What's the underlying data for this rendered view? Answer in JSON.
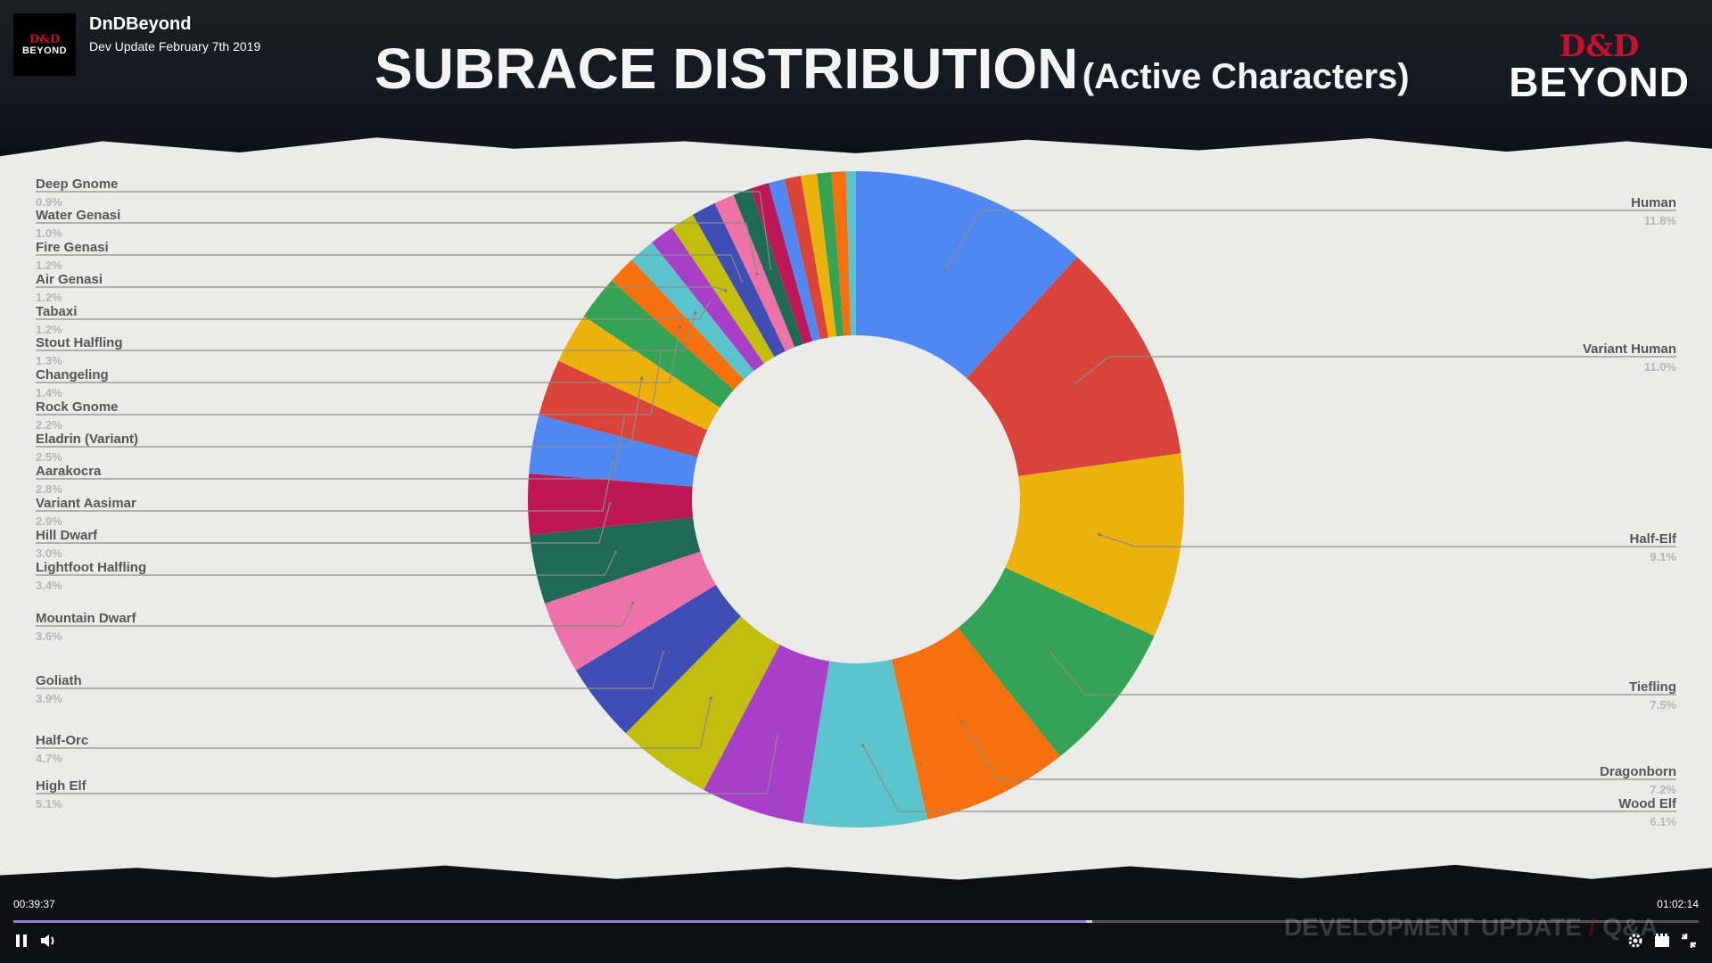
{
  "channel": {
    "logo_text_top": "D&D",
    "logo_text_bottom": "BEYOND",
    "name": "DnDBeyond",
    "video_title": "Dev Update February 7th 2019"
  },
  "slide": {
    "title": "SUBRACE DISTRIBUTION",
    "subtitle": "(Active Characters)",
    "brand_top": "D&D",
    "brand_bottom": "BEYOND"
  },
  "player": {
    "current_time": "00:39:37",
    "total_time": "01:02:14",
    "progress_fraction": 0.6365,
    "buffered_fraction": 0.64,
    "watermark_main": "DEVELOPMENT UPDATE",
    "watermark_slash": "/",
    "watermark_tail": "Q&A"
  },
  "icons": [
    "pause-icon",
    "volume-icon",
    "settings-icon",
    "theater-mode-icon",
    "exit-fullscreen-icon"
  ],
  "chart_data": {
    "type": "pie",
    "style": "donut",
    "title": "SUBRACE DISTRIBUTION (Active Characters)",
    "slices": [
      {
        "label": "Human",
        "value": 11.8,
        "pct": "11.8%",
        "color": "#4f87f3",
        "side": "right"
      },
      {
        "label": "Variant Human",
        "value": 11.0,
        "pct": "11.0%",
        "color": "#d9433a",
        "side": "right"
      },
      {
        "label": "Half-Elf",
        "value": 9.1,
        "pct": "9.1%",
        "color": "#edb10c",
        "side": "right"
      },
      {
        "label": "Tiefling",
        "value": 7.5,
        "pct": "7.5%",
        "color": "#34a355",
        "side": "right"
      },
      {
        "label": "Dragonborn",
        "value": 7.2,
        "pct": "7.2%",
        "color": "#f6700d",
        "side": "right"
      },
      {
        "label": "Wood Elf",
        "value": 6.1,
        "pct": "6.1%",
        "color": "#5bc3cc",
        "side": "right"
      },
      {
        "label": "High Elf",
        "value": 5.1,
        "pct": "5.1%",
        "color": "#a83fc9",
        "side": "left"
      },
      {
        "label": "Half-Orc",
        "value": 4.7,
        "pct": "4.7%",
        "color": "#c3bd0d",
        "side": "left"
      },
      {
        "label": "Goliath",
        "value": 3.9,
        "pct": "3.9%",
        "color": "#3f4db4",
        "side": "left"
      },
      {
        "label": "Mountain Dwarf",
        "value": 3.6,
        "pct": "3.6%",
        "color": "#ec72a8",
        "side": "left"
      },
      {
        "label": "Lightfoot Halfling",
        "value": 3.4,
        "pct": "3.4%",
        "color": "#1e6a57",
        "side": "left"
      },
      {
        "label": "Hill Dwarf",
        "value": 3.0,
        "pct": "3.0%",
        "color": "#be1757",
        "side": "left"
      },
      {
        "label": "Variant Aasimar",
        "value": 2.9,
        "pct": "2.9%",
        "color": "#4f87f3",
        "side": "left"
      },
      {
        "label": "Aarakocra",
        "value": 2.8,
        "pct": "2.8%",
        "color": "#d9433a",
        "side": "left"
      },
      {
        "label": "Eladrin (Variant)",
        "value": 2.5,
        "pct": "2.5%",
        "color": "#edb10c",
        "side": "left"
      },
      {
        "label": "Rock Gnome",
        "value": 2.2,
        "pct": "2.2%",
        "color": "#34a355",
        "side": "left"
      },
      {
        "label": "Changeling",
        "value": 1.4,
        "pct": "1.4%",
        "color": "#f6700d",
        "side": "left"
      },
      {
        "label": "Stout Halfling",
        "value": 1.3,
        "pct": "1.3%",
        "color": "#5bc3cc",
        "side": "left"
      },
      {
        "label": "Tabaxi",
        "value": 1.2,
        "pct": "1.2%",
        "color": "#a83fc9",
        "side": "left"
      },
      {
        "label": "Air Genasi",
        "value": 1.2,
        "pct": "1.2%",
        "color": "#c3bd0d",
        "side": "left"
      },
      {
        "label": "Fire Genasi",
        "value": 1.2,
        "pct": "1.2%",
        "color": "#3f4db4",
        "side": "left"
      },
      {
        "label": "Water Genasi",
        "value": 1.0,
        "pct": "1.0%",
        "color": "#ec72a8",
        "side": "left"
      },
      {
        "label": "Deep Gnome",
        "value": 0.9,
        "pct": "0.9%",
        "color": "#1e6a57",
        "side": "left"
      },
      {
        "label": "",
        "value": 0.9,
        "color": "#be1757"
      },
      {
        "label": "",
        "value": 0.8,
        "color": "#4f87f3"
      },
      {
        "label": "",
        "value": 0.8,
        "color": "#d9433a"
      },
      {
        "label": "",
        "value": 0.8,
        "color": "#edb10c"
      },
      {
        "label": "",
        "value": 0.7,
        "color": "#34a355"
      },
      {
        "label": "",
        "value": 0.7,
        "color": "#f6700d"
      },
      {
        "label": "",
        "value": 0.5,
        "color": "#5bc3cc"
      }
    ],
    "legend": "callout-labels"
  }
}
